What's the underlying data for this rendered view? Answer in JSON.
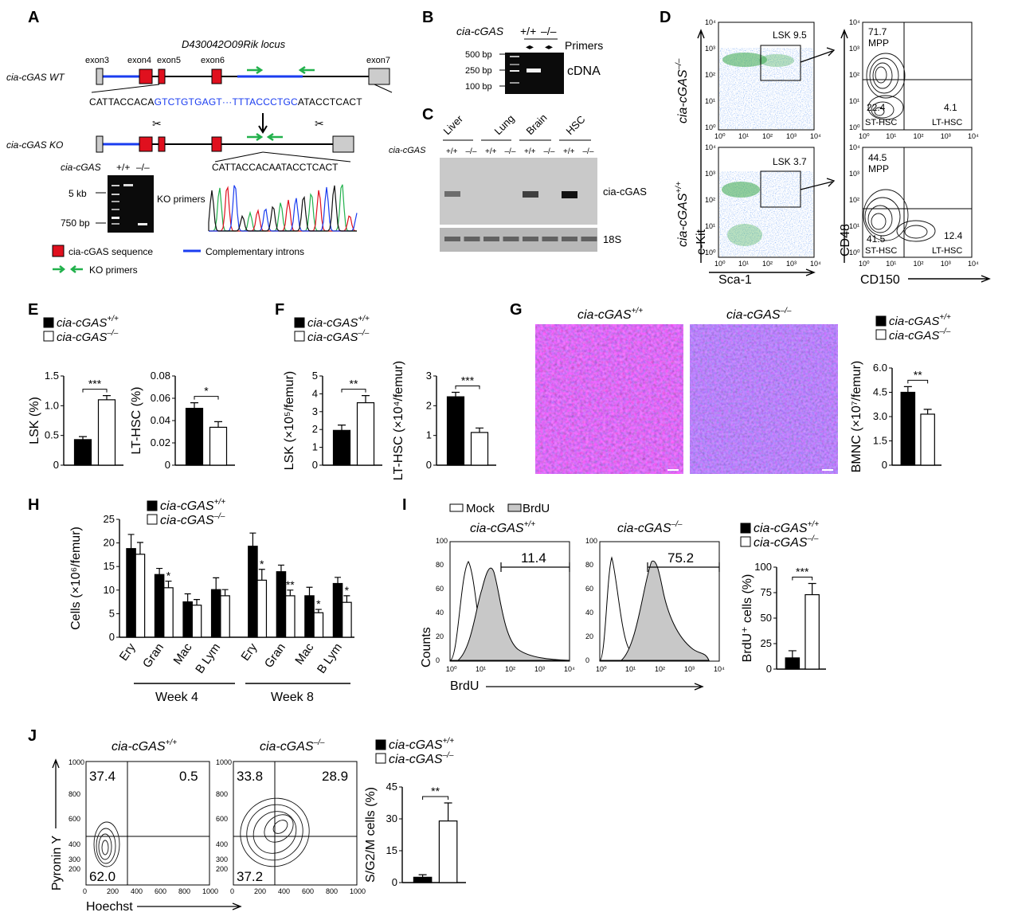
{
  "panels": {
    "A": {
      "label": "A",
      "locus": "D430042O09Rik locus",
      "wt_label": "cia-cGAS WT",
      "ko_label": "cia-cGAS KO",
      "exons": [
        "exon3",
        "exon4",
        "exon5",
        "exon6",
        "exon7"
      ],
      "wt_sequence_start": "CATTACCACA",
      "wt_sequence_blue": "GTCTGTGAGT···TTTACCCTGC",
      "wt_sequence_end": "ATACCTCACT",
      "ko_sequence": "CATTACCACAATACCTCACT",
      "gel_genotype_label": "cia-cGAS",
      "gel_genotypes": [
        "+/+",
        "–/–"
      ],
      "gel_markers": [
        "5 kb",
        "750 bp"
      ],
      "gel_primer_label": "KO primers",
      "legend": {
        "cgas_sequence": "cia-cGAS sequence",
        "introns": "Complementary introns",
        "primers": "KO primers"
      },
      "colors": {
        "exon_red": "#e0101e",
        "intron_blue": "#1a3cf0",
        "primer_green": "#22b14c"
      }
    },
    "B": {
      "label": "B",
      "genotype_label": "cia-cGAS",
      "genotypes": [
        "+/+",
        "–/–"
      ],
      "primers": "Primers",
      "markers": [
        "500 bp",
        "250 bp",
        "100 bp"
      ],
      "product": "cDNA"
    },
    "C": {
      "label": "C",
      "tissues": [
        "Liver",
        "Lung",
        "Brain",
        "HSC"
      ],
      "genotype_label": "cia-cGAS",
      "genotypes": [
        "+/+",
        "–/–"
      ],
      "bands": [
        "cia-cGAS",
        "18S"
      ]
    },
    "D": {
      "label": "D",
      "rows": [
        {
          "genotype": "cia-cGAS",
          "sup": "–/–",
          "lsk": "LSK 9.5",
          "mpp": "71.7",
          "st": "22.4",
          "lt": "4.1"
        },
        {
          "genotype": "cia-cGAS",
          "sup": "+/+",
          "lsk": "LSK 3.7",
          "mpp": "44.5",
          "st": "41.5",
          "lt": "12.4"
        }
      ],
      "mpp_label": "MPP",
      "st_label": "ST-HSC",
      "lt_label": "LT-HSC",
      "xlabel_left": "Sca-1",
      "ylabel_left": "c-Kit",
      "xlabel_right": "CD150",
      "ylabel_right": "CD48",
      "tick_labels": [
        "10⁰",
        "10¹",
        "10²",
        "10³",
        "10⁴"
      ]
    },
    "E": {
      "label": "E"
    },
    "F": {
      "label": "F"
    },
    "G": {
      "label": "G",
      "image_titles": [
        "cia-cGAS",
        "cia-cGAS"
      ],
      "image_sups": [
        "+/+",
        "–/–"
      ]
    },
    "H": {
      "label": "H",
      "week_labels": [
        "Week 4",
        "Week 8"
      ]
    },
    "I": {
      "label": "I",
      "legend_mock": "Mock",
      "legend_brdu": "BrdU",
      "titles": [
        "cia-cGAS",
        "cia-cGAS"
      ],
      "sups": [
        "+/+",
        "–/–"
      ],
      "gate_values": [
        "11.4",
        "75.2"
      ],
      "xlabel": "BrdU",
      "ylabel": "Counts",
      "y_ticks": [
        "0",
        "20",
        "40",
        "60",
        "80",
        "100"
      ],
      "x_ticks": [
        "10⁰",
        "10¹",
        "10²",
        "10³",
        "10⁴"
      ]
    },
    "J": {
      "label": "J",
      "titles": [
        "cia-cGAS",
        "cia-cGAS"
      ],
      "sups": [
        "+/+",
        "–/–"
      ],
      "quadrants": [
        [
          "37.4",
          "0.5",
          "62.0"
        ],
        [
          "33.8",
          "28.9",
          "37.2"
        ]
      ],
      "xlabel": "Hoechst",
      "ylabel": "Pyronin Y",
      "y_ticks": [
        "200",
        "300",
        "400",
        "600",
        "800",
        "1000"
      ],
      "x_ticks": [
        "0",
        "200",
        "400",
        "600",
        "800",
        "1000"
      ]
    }
  },
  "legend_labels": {
    "base": "cia-cGAS",
    "wt_sup": "+/+",
    "ko_sup": "–/–"
  },
  "chart_data": [
    {
      "panel": "E",
      "type": "bar",
      "ylabel": "LSK (%)",
      "categories": [
        "cia-cGAS+/+",
        "cia-cGAS–/–"
      ],
      "values": [
        0.43,
        1.1
      ],
      "errors": [
        0.05,
        0.07
      ],
      "ylim": [
        0,
        1.5
      ],
      "yticks": [
        0,
        0.5,
        1.0,
        1.5
      ],
      "ytick_labels": [
        "0",
        "0.5",
        "1.0",
        "1.5"
      ],
      "significance": "***"
    },
    {
      "panel": "E",
      "type": "bar",
      "ylabel": "LT-HSC (%)",
      "categories": [
        "cia-cGAS+/+",
        "cia-cGAS–/–"
      ],
      "values": [
        0.051,
        0.034
      ],
      "errors": [
        0.005,
        0.005
      ],
      "ylim": [
        0,
        0.08
      ],
      "yticks": [
        0,
        0.02,
        0.04,
        0.06,
        0.08
      ],
      "ytick_labels": [
        "0",
        "0.02",
        "0.04",
        "0.06",
        "0.08"
      ],
      "significance": "*"
    },
    {
      "panel": "F",
      "type": "bar",
      "ylabel": "LSK (×10⁵/femur)",
      "categories": [
        "cia-cGAS+/+",
        "cia-cGAS–/–"
      ],
      "values": [
        1.95,
        3.5
      ],
      "errors": [
        0.3,
        0.4
      ],
      "ylim": [
        0,
        5
      ],
      "yticks": [
        0,
        1,
        2,
        3,
        4,
        5
      ],
      "ytick_labels": [
        "0",
        "1",
        "2",
        "3",
        "4",
        "5"
      ],
      "significance": "**"
    },
    {
      "panel": "F",
      "type": "bar",
      "ylabel": "LT-HSC (×10⁴/femur)",
      "categories": [
        "cia-cGAS+/+",
        "cia-cGAS–/–"
      ],
      "values": [
        2.3,
        1.1
      ],
      "errors": [
        0.15,
        0.15
      ],
      "ylim": [
        0,
        3
      ],
      "yticks": [
        0,
        1,
        2,
        3
      ],
      "ytick_labels": [
        "0",
        "1",
        "2",
        "3"
      ],
      "significance": "***"
    },
    {
      "panel": "G",
      "type": "bar",
      "ylabel": "BMNC (×10⁷/femur)",
      "categories": [
        "cia-cGAS+/+",
        "cia-cGAS–/–"
      ],
      "values": [
        4.5,
        3.15
      ],
      "errors": [
        0.35,
        0.3
      ],
      "ylim": [
        0,
        6.0
      ],
      "yticks": [
        0,
        1.5,
        3.0,
        4.5,
        6.0
      ],
      "ytick_labels": [
        "0",
        "1.5",
        "3.0",
        "4.5",
        "6.0"
      ],
      "significance": "**"
    },
    {
      "panel": "H",
      "type": "bar",
      "ylabel": "Cells (×10⁶/femur)",
      "categories": [
        "Ery",
        "Gran",
        "Mac",
        "B Lym",
        "Ery",
        "Gran",
        "Mac",
        "B Lym"
      ],
      "groups": [
        "Week 4",
        "Week 4",
        "Week 4",
        "Week 4",
        "Week 8",
        "Week 8",
        "Week 8",
        "Week 8"
      ],
      "series": [
        {
          "name": "cia-cGAS+/+",
          "values": [
            18.8,
            13.3,
            7.5,
            10.1,
            19.3,
            13.9,
            8.8,
            11.4
          ],
          "errors": [
            3.0,
            1.3,
            1.7,
            2.5,
            2.8,
            1.4,
            1.8,
            1.3
          ]
        },
        {
          "name": "cia-cGAS–/–",
          "values": [
            17.6,
            10.5,
            6.8,
            8.8,
            12.1,
            8.8,
            5.2,
            7.4
          ],
          "errors": [
            2.5,
            1.4,
            1.2,
            1.3,
            2.3,
            1.2,
            0.7,
            1.4
          ]
        }
      ],
      "significance": [
        "",
        "*",
        "",
        "",
        "*",
        "**",
        "*",
        "*"
      ],
      "ylim": [
        0,
        25
      ],
      "yticks": [
        0,
        5,
        10,
        15,
        20,
        25
      ],
      "ytick_labels": [
        "0",
        "5",
        "10",
        "15",
        "20",
        "25"
      ]
    },
    {
      "panel": "I",
      "type": "bar",
      "ylabel": "BrdU⁺ cells (%)",
      "categories": [
        "cia-cGAS+/+",
        "cia-cGAS–/–"
      ],
      "values": [
        11,
        73
      ],
      "errors": [
        7,
        11
      ],
      "ylim": [
        0,
        100
      ],
      "yticks": [
        0,
        25,
        50,
        75,
        100
      ],
      "ytick_labels": [
        "0",
        "25",
        "50",
        "75",
        "100"
      ],
      "significance": "***"
    },
    {
      "panel": "J",
      "type": "bar",
      "ylabel": "S/G2/M cells (%)",
      "categories": [
        "cia-cGAS+/+",
        "cia-cGAS–/–"
      ],
      "values": [
        2.5,
        29
      ],
      "errors": [
        1.2,
        8.5
      ],
      "ylim": [
        0,
        45
      ],
      "yticks": [
        0,
        15,
        30,
        45
      ],
      "ytick_labels": [
        "0",
        "15",
        "30",
        "45"
      ],
      "significance": "**"
    }
  ]
}
